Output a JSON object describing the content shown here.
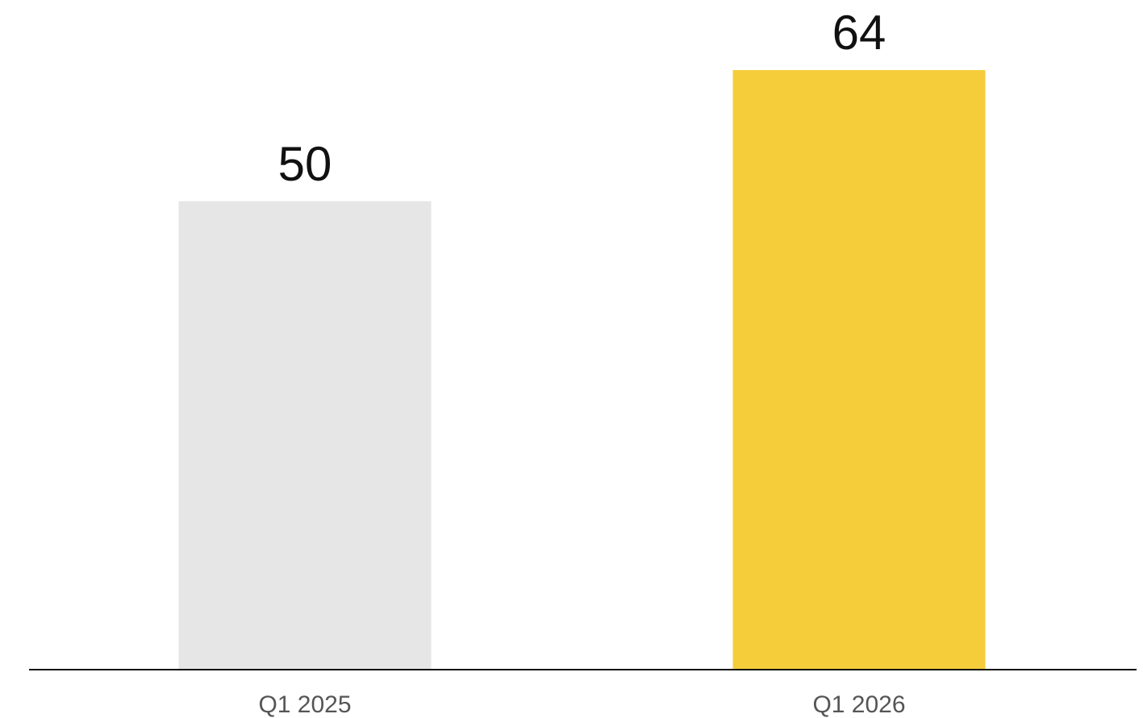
{
  "chart_data": {
    "type": "bar",
    "categories": [
      "Q1 2025",
      "Q1 2026"
    ],
    "values": [
      50,
      64
    ],
    "data_labels": [
      "50",
      "64"
    ],
    "title": "",
    "xlabel": "",
    "ylabel": "",
    "ylim": [
      0,
      64
    ],
    "grid": false,
    "legend": "none",
    "y_axis_visible": false,
    "bar_colors": [
      "#e6e6e6",
      "#f5cd3a"
    ],
    "axis_color": "#111111",
    "value_label_color": "#111111",
    "category_label_color": "#555555"
  }
}
